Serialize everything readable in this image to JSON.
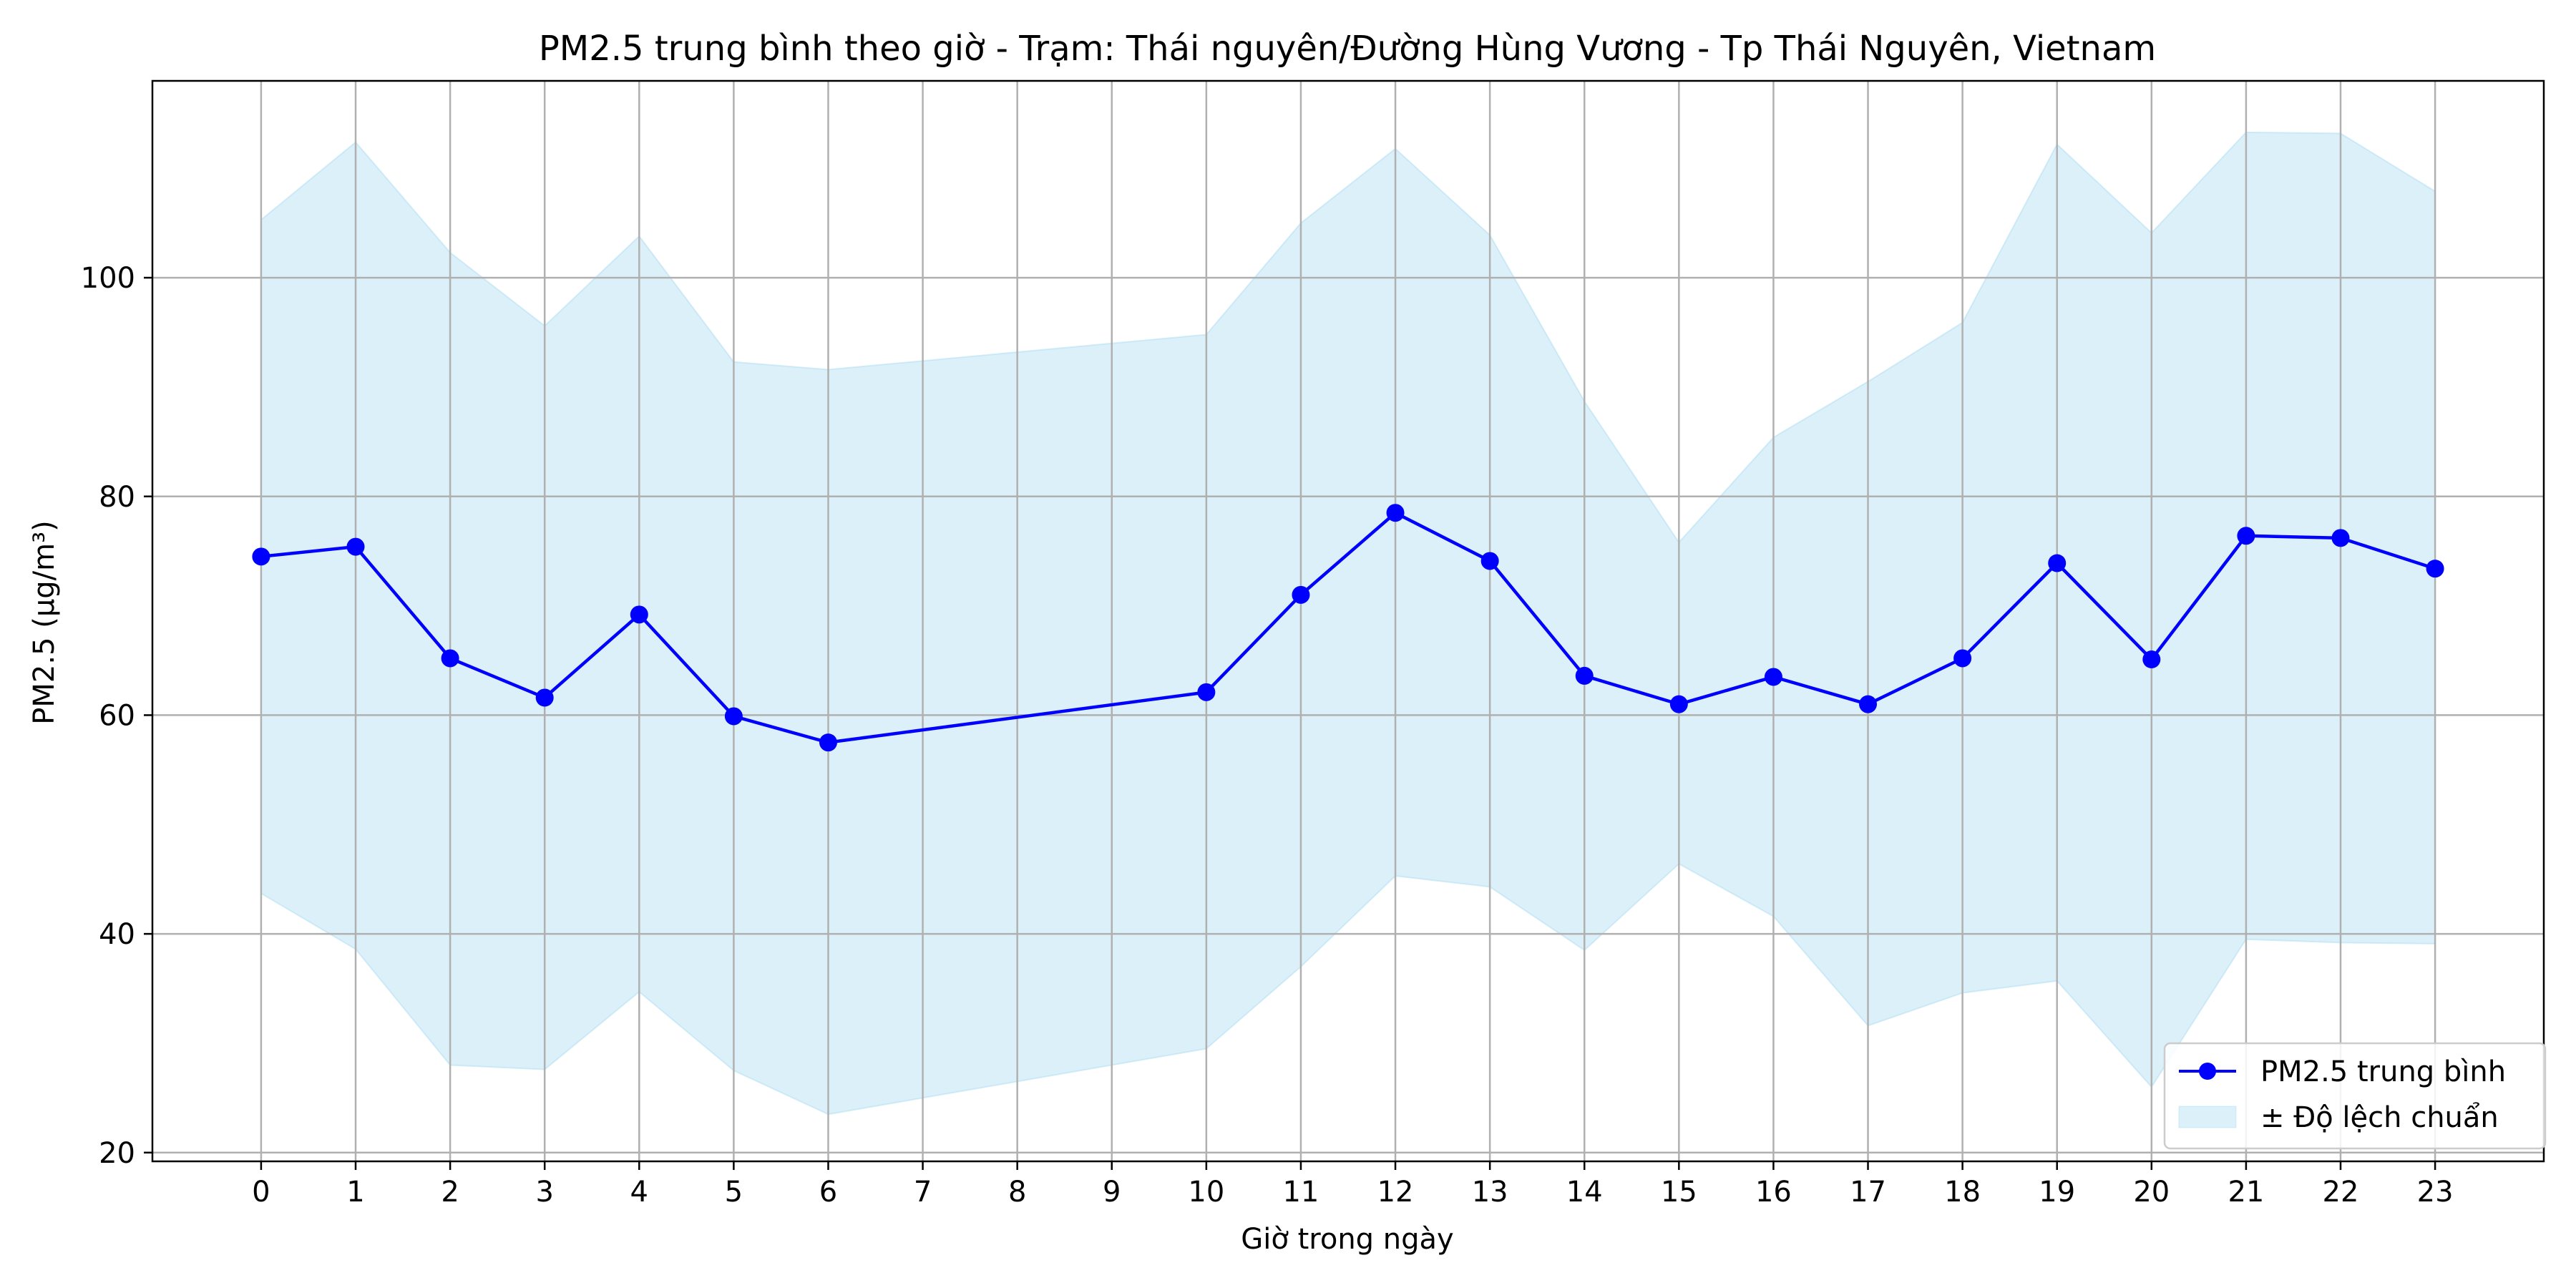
{
  "chart_data": {
    "type": "line",
    "title": "PM2.5 trung bình theo giờ - Trạm: Thái nguyên/Đường Hùng Vương - Tp Thái Nguyên, Vietnam",
    "xlabel": "Giờ trong ngày",
    "ylabel": "PM2.5 (µg/m³)",
    "xlim": [
      -1.15,
      24.15
    ],
    "ylim": [
      19.2,
      118
    ],
    "xticks": [
      0,
      1,
      2,
      3,
      4,
      5,
      6,
      7,
      8,
      9,
      10,
      11,
      12,
      13,
      14,
      15,
      16,
      17,
      18,
      19,
      20,
      21,
      22,
      23
    ],
    "yticks": [
      20,
      40,
      60,
      80,
      100
    ],
    "grid": true,
    "legend_position": "lower-right",
    "series": [
      {
        "name": "PM2.5 trung bình",
        "kind": "line-markers",
        "color": "#0000ff",
        "x": [
          0,
          1,
          2,
          3,
          4,
          5,
          6,
          10,
          11,
          12,
          13,
          14,
          15,
          16,
          17,
          18,
          19,
          20,
          21,
          22,
          23
        ],
        "values": [
          74.5,
          75.4,
          65.2,
          61.6,
          69.2,
          59.9,
          57.5,
          62.1,
          71.0,
          78.5,
          74.1,
          63.6,
          61.0,
          63.5,
          61.0,
          65.2,
          73.9,
          65.1,
          76.4,
          76.2,
          73.4
        ]
      },
      {
        "name": "± Độ lệch chuẩn",
        "kind": "band",
        "color": "#87ceeb",
        "x": [
          0,
          1,
          2,
          3,
          4,
          5,
          6,
          10,
          11,
          12,
          13,
          14,
          15,
          16,
          17,
          18,
          19,
          20,
          21,
          22,
          23
        ],
        "upper": [
          105.3,
          112.4,
          102.3,
          95.6,
          103.8,
          92.3,
          91.6,
          94.8,
          105.0,
          111.8,
          103.9,
          88.7,
          75.8,
          85.4,
          90.5,
          95.9,
          112.2,
          104.1,
          113.3,
          113.2,
          107.9
        ],
        "lower": [
          43.7,
          38.6,
          28.0,
          27.6,
          34.7,
          27.5,
          23.5,
          29.5,
          37.0,
          45.3,
          44.3,
          38.5,
          46.4,
          41.6,
          31.6,
          34.6,
          35.7,
          26.0,
          39.5,
          39.2,
          39.1
        ]
      }
    ]
  }
}
